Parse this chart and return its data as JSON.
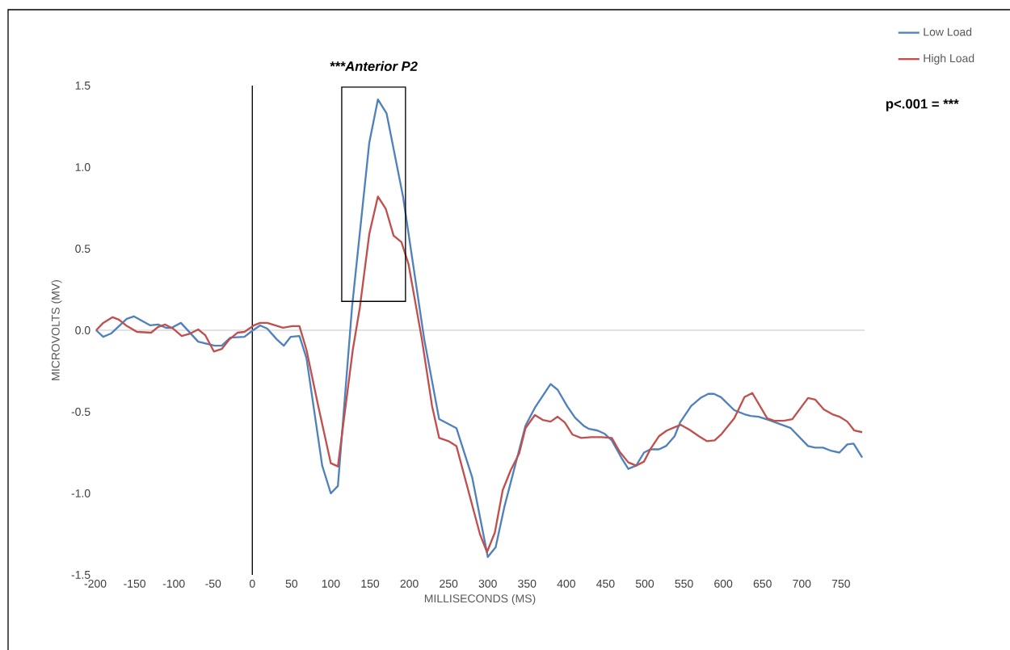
{
  "chart_data": {
    "type": "line",
    "xlabel": "MILLISECONDS (MS)",
    "ylabel": "MICROVOLTS (MV)",
    "xlim": [
      -200,
      780
    ],
    "ylim": [
      -1.5,
      1.5
    ],
    "xticks": [
      -200,
      -150,
      -100,
      -50,
      0,
      50,
      100,
      150,
      200,
      250,
      300,
      350,
      400,
      450,
      500,
      550,
      600,
      650,
      700,
      750
    ],
    "yticks": [
      {
        "value": -1.5,
        "label": "-1.5"
      },
      {
        "value": -1,
        "label": "-1.0"
      },
      {
        "value": -0.5,
        "label": "-0.5"
      },
      {
        "value": 0,
        "label": "0.0"
      },
      {
        "value": 0.5,
        "label": "0.5"
      },
      {
        "value": 1,
        "label": "1.0"
      },
      {
        "value": 1.5,
        "label": "1.5"
      }
    ],
    "grid": false,
    "legend": "top right",
    "marker": "none",
    "line_style": "solid",
    "series": [
      {
        "name": "Low Load",
        "color": "#4f81bd",
        "x": [
          -199,
          -190,
          -180,
          -160,
          -151,
          -130,
          -120,
          -110,
          -103,
          -91,
          -69,
          -48,
          -39,
          -28,
          -10,
          -2,
          10,
          19,
          31,
          40,
          49,
          60,
          69,
          89,
          100,
          109,
          127,
          149,
          160,
          171,
          192,
          219,
          238,
          260,
          280,
          300,
          310,
          321,
          348,
          360,
          380,
          389,
          401,
          411,
          422,
          429,
          440,
          449,
          458,
          470,
          479,
          489,
          499,
          507,
          518,
          527,
          538,
          545,
          559,
          571,
          581,
          588,
          597,
          614,
          627,
          635,
          645,
          658,
          672,
          686,
          708,
          717,
          727,
          738,
          748,
          758,
          766,
          777
        ],
        "values": [
          0.0,
          -0.04,
          -0.02,
          0.07,
          0.085,
          0.03,
          0.035,
          0.015,
          0.015,
          0.045,
          -0.07,
          -0.095,
          -0.095,
          -0.045,
          -0.04,
          -0.01,
          0.03,
          0.01,
          -0.055,
          -0.095,
          -0.04,
          -0.035,
          -0.17,
          -0.83,
          -1.0,
          -0.955,
          0.14,
          1.15,
          1.415,
          1.33,
          0.82,
          -0.055,
          -0.545,
          -0.6,
          -0.9,
          -1.39,
          -1.33,
          -1.085,
          -0.585,
          -0.475,
          -0.33,
          -0.365,
          -0.465,
          -0.535,
          -0.585,
          -0.605,
          -0.615,
          -0.635,
          -0.675,
          -0.78,
          -0.85,
          -0.83,
          -0.75,
          -0.73,
          -0.73,
          -0.71,
          -0.65,
          -0.565,
          -0.465,
          -0.415,
          -0.39,
          -0.39,
          -0.41,
          -0.49,
          -0.515,
          -0.525,
          -0.53,
          -0.55,
          -0.575,
          -0.6,
          -0.71,
          -0.72,
          -0.72,
          -0.74,
          -0.75,
          -0.7,
          -0.695,
          -0.78
        ]
      },
      {
        "name": "High Load",
        "color": "#c0504d",
        "x": [
          -199,
          -190,
          -178,
          -170,
          -161,
          -147,
          -129,
          -120,
          -111,
          -101,
          -90,
          -79,
          -69,
          -60,
          -49,
          -39,
          -29,
          -19,
          -10,
          2,
          10,
          19,
          39,
          51,
          60,
          69,
          84,
          100,
          109,
          128,
          137,
          149,
          160,
          170,
          180,
          190,
          199,
          216,
          229,
          238,
          250,
          260,
          290,
          299,
          309,
          319,
          329,
          340,
          348,
          360,
          370,
          380,
          389,
          398,
          408,
          419,
          432,
          445,
          458,
          468,
          479,
          489,
          499,
          507,
          518,
          528,
          538,
          546,
          557,
          569,
          579,
          589,
          598,
          614,
          627,
          637,
          656,
          665,
          677,
          688,
          708,
          717,
          728,
          739,
          748,
          758,
          767,
          777
        ],
        "values": [
          0.0,
          0.045,
          0.08,
          0.065,
          0.03,
          -0.01,
          -0.015,
          0.02,
          0.035,
          0.01,
          -0.035,
          -0.02,
          0.005,
          -0.03,
          -0.13,
          -0.115,
          -0.055,
          -0.015,
          -0.01,
          0.03,
          0.045,
          0.045,
          0.015,
          0.025,
          0.025,
          -0.12,
          -0.465,
          -0.815,
          -0.835,
          -0.12,
          0.14,
          0.59,
          0.82,
          0.745,
          0.58,
          0.54,
          0.405,
          -0.055,
          -0.465,
          -0.66,
          -0.68,
          -0.71,
          -1.25,
          -1.36,
          -1.24,
          -0.98,
          -0.86,
          -0.755,
          -0.6,
          -0.52,
          -0.55,
          -0.56,
          -0.53,
          -0.565,
          -0.64,
          -0.66,
          -0.655,
          -0.655,
          -0.66,
          -0.745,
          -0.81,
          -0.83,
          -0.805,
          -0.73,
          -0.65,
          -0.615,
          -0.595,
          -0.58,
          -0.61,
          -0.65,
          -0.68,
          -0.675,
          -0.635,
          -0.54,
          -0.41,
          -0.385,
          -0.54,
          -0.555,
          -0.555,
          -0.545,
          -0.415,
          -0.425,
          -0.485,
          -0.515,
          -0.53,
          -0.56,
          -0.615,
          -0.625
        ]
      }
    ],
    "ref_lines": [
      {
        "axis": "x",
        "value": 0,
        "color": "#000000"
      },
      {
        "axis": "y",
        "value": 0,
        "color": "#d9d9d9"
      }
    ],
    "annotations": [
      "***Anterior P2",
      "p<.001 = ***"
    ]
  }
}
